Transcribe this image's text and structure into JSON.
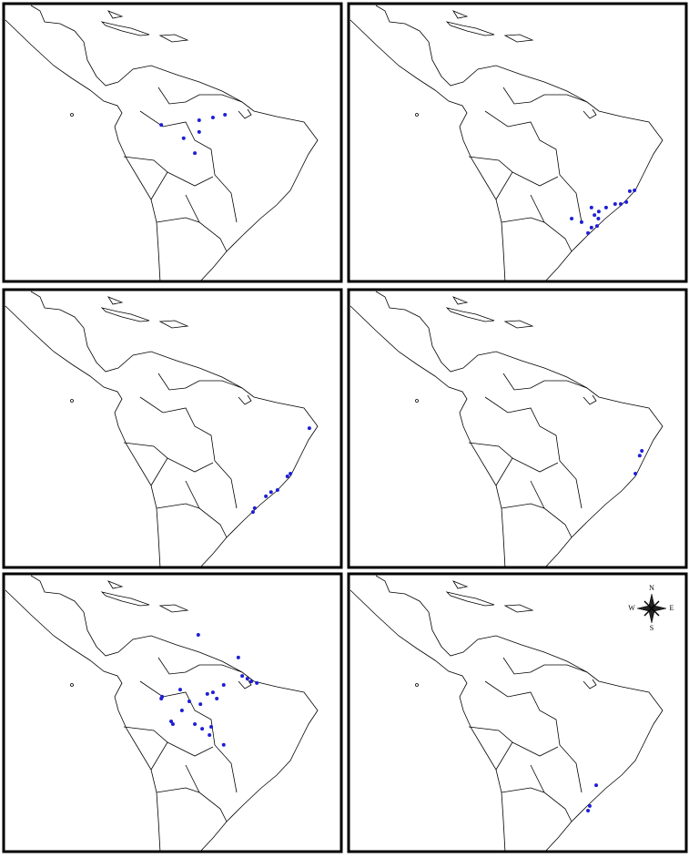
{
  "panels": [
    {
      "points": [
        [
          -71.3,
          -2.6
        ],
        [
          -62.5,
          -1.4
        ],
        [
          -59.3,
          -0.7
        ],
        [
          -56.5,
          0
        ],
        [
          -66.1,
          -6
        ],
        [
          -62.5,
          -4.4
        ],
        [
          -63.5,
          -9.8
        ]
      ]
    },
    {
      "points": [
        [
          -41.5,
          -19.3
        ],
        [
          -42.6,
          -19.5
        ],
        [
          -43.4,
          -22.3
        ],
        [
          -44.7,
          -22.8
        ],
        [
          -46.0,
          -22.8
        ],
        [
          -48.1,
          -23.7
        ],
        [
          -49.8,
          -24.7
        ],
        [
          -50.8,
          -25.6
        ],
        [
          -49.9,
          -26.5
        ],
        [
          -51.5,
          -23.7
        ],
        [
          -53.8,
          -27.4
        ],
        [
          -56.1,
          -26.5
        ],
        [
          -52.3,
          -30.2
        ],
        [
          -51.5,
          -28.8
        ],
        [
          -50.2,
          -28.4
        ]
      ]
    },
    {
      "points": [
        [
          -36.9,
          -7.0
        ],
        [
          -41.3,
          -18.6
        ],
        [
          -42.0,
          -19.3
        ],
        [
          -44.3,
          -22.8
        ],
        [
          -45.8,
          -23.3
        ],
        [
          -47.0,
          -24.4
        ],
        [
          -49.6,
          -27.4
        ],
        [
          -50.0,
          -28.4
        ]
      ]
    },
    {
      "points": [
        [
          -39.8,
          -12.8
        ],
        [
          -40.3,
          -14.0
        ],
        [
          -41.3,
          -18.6
        ]
      ]
    },
    {
      "points": [
        [
          -62.7,
          12.8
        ],
        [
          -71.1,
          -3.0
        ],
        [
          -71.3,
          -3.5
        ],
        [
          -66.9,
          -1.2
        ],
        [
          -64.8,
          -4.2
        ],
        [
          -62.2,
          -4.9
        ],
        [
          -60.6,
          -2.3
        ],
        [
          -59.3,
          -1.9
        ],
        [
          -58.4,
          -3.5
        ],
        [
          -56.8,
          0
        ],
        [
          -53.4,
          7.0
        ],
        [
          -52.5,
          2.3
        ],
        [
          -51.3,
          1.6
        ],
        [
          -50.4,
          0.9
        ],
        [
          -49.1,
          0.5
        ],
        [
          -66.5,
          -6.5
        ],
        [
          -69.0,
          -9.3
        ],
        [
          -68.6,
          -10
        ],
        [
          -63.5,
          -10
        ],
        [
          -61.8,
          -11.2
        ],
        [
          -59.7,
          -10.7
        ],
        [
          -56.8,
          -15.3
        ],
        [
          -60.1,
          -12.8
        ]
      ]
    },
    {
      "points": [
        [
          -50.4,
          -25.6
        ],
        [
          -51.9,
          -30.9
        ],
        [
          -52.3,
          -32.1
        ]
      ]
    }
  ],
  "compass": {
    "north": "N",
    "east": "E",
    "south": "S",
    "west": "W"
  },
  "point_color": "#1f1fd6"
}
